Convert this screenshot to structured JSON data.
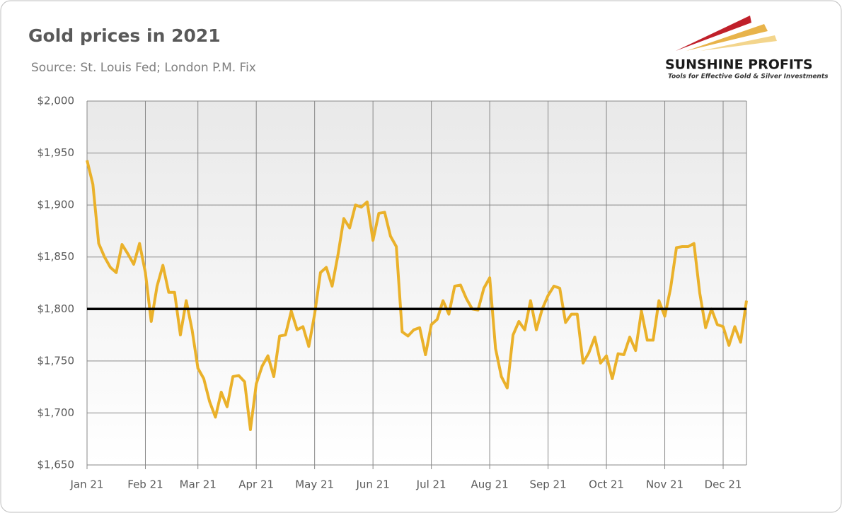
{
  "chart_data": {
    "type": "line",
    "title": "Gold prices in 2021",
    "subtitle": "Source: St. Louis Fed; London P.M. Fix",
    "logo": {
      "name": "SUNSHINE PROFITS",
      "tagline": "Tools for Effective Gold & Silver Investments"
    },
    "categories": [
      "Jan 21",
      null,
      null,
      null,
      null,
      null,
      null,
      null,
      null,
      null,
      "Feb 21",
      null,
      null,
      null,
      null,
      null,
      null,
      null,
      null,
      "Mar 21",
      null,
      null,
      null,
      null,
      null,
      null,
      null,
      null,
      null,
      "Apr 21",
      null,
      null,
      null,
      null,
      null,
      null,
      null,
      null,
      null,
      "May 21",
      null,
      null,
      null,
      null,
      null,
      null,
      null,
      null,
      null,
      "Jun 21",
      null,
      null,
      null,
      null,
      null,
      null,
      null,
      null,
      null,
      "Jul 21",
      null,
      null,
      null,
      null,
      null,
      null,
      null,
      null,
      null,
      "Aug 21",
      null,
      null,
      null,
      null,
      null,
      null,
      null,
      null,
      null,
      "Sep 21",
      null,
      null,
      null,
      null,
      null,
      null,
      null,
      null,
      null,
      "Oct 21",
      null,
      null,
      null,
      null,
      null,
      null,
      null,
      null,
      null,
      "Nov 21",
      null,
      null,
      null,
      null,
      null,
      null,
      null,
      null,
      null,
      "Dec 21",
      null,
      null,
      null,
      null
    ],
    "series": [
      {
        "name": "Gold price",
        "color": "#eab12a",
        "values": [
          1943,
          1920,
          1863,
          1850,
          1840,
          1835,
          1862,
          1853,
          1843,
          1863,
          1835,
          1788,
          1822,
          1842,
          1816,
          1816,
          1775,
          1808,
          1780,
          1743,
          1733,
          1711,
          1696,
          1720,
          1706,
          1735,
          1736,
          1730,
          1684,
          1728,
          1745,
          1755,
          1735,
          1774,
          1775,
          1798,
          1780,
          1783,
          1764,
          1795,
          1835,
          1840,
          1822,
          1852,
          1887,
          1878,
          1900,
          1898,
          1903,
          1866,
          1892,
          1893,
          1870,
          1860,
          1778,
          1774,
          1780,
          1782,
          1756,
          1785,
          1790,
          1808,
          1795,
          1822,
          1823,
          1810,
          1800,
          1799,
          1820,
          1830,
          1762,
          1735,
          1724,
          1775,
          1788,
          1780,
          1808,
          1780,
          1800,
          1813,
          1822,
          1820,
          1787,
          1795,
          1795,
          1748,
          1758,
          1773,
          1748,
          1755,
          1733,
          1757,
          1756,
          1773,
          1760,
          1798,
          1770,
          1770,
          1808,
          1793,
          1820,
          1859,
          1860,
          1860,
          1863,
          1815,
          1782,
          1800,
          1785,
          1783,
          1765,
          1783,
          1768,
          1808
        ]
      }
    ],
    "reference_line": 1800,
    "ylim": [
      1650,
      2000
    ],
    "yticks": [
      {
        "value": 1650,
        "label": "$1,650"
      },
      {
        "value": 1700,
        "label": "$1,700"
      },
      {
        "value": 1750,
        "label": "$1,750"
      },
      {
        "value": 1800,
        "label": "$1,800"
      },
      {
        "value": 1850,
        "label": "$1,850"
      },
      {
        "value": 1900,
        "label": "$1,900"
      },
      {
        "value": 1950,
        "label": "$1,950"
      },
      {
        "value": 2000,
        "label": "$2,000"
      }
    ],
    "grid": true
  }
}
